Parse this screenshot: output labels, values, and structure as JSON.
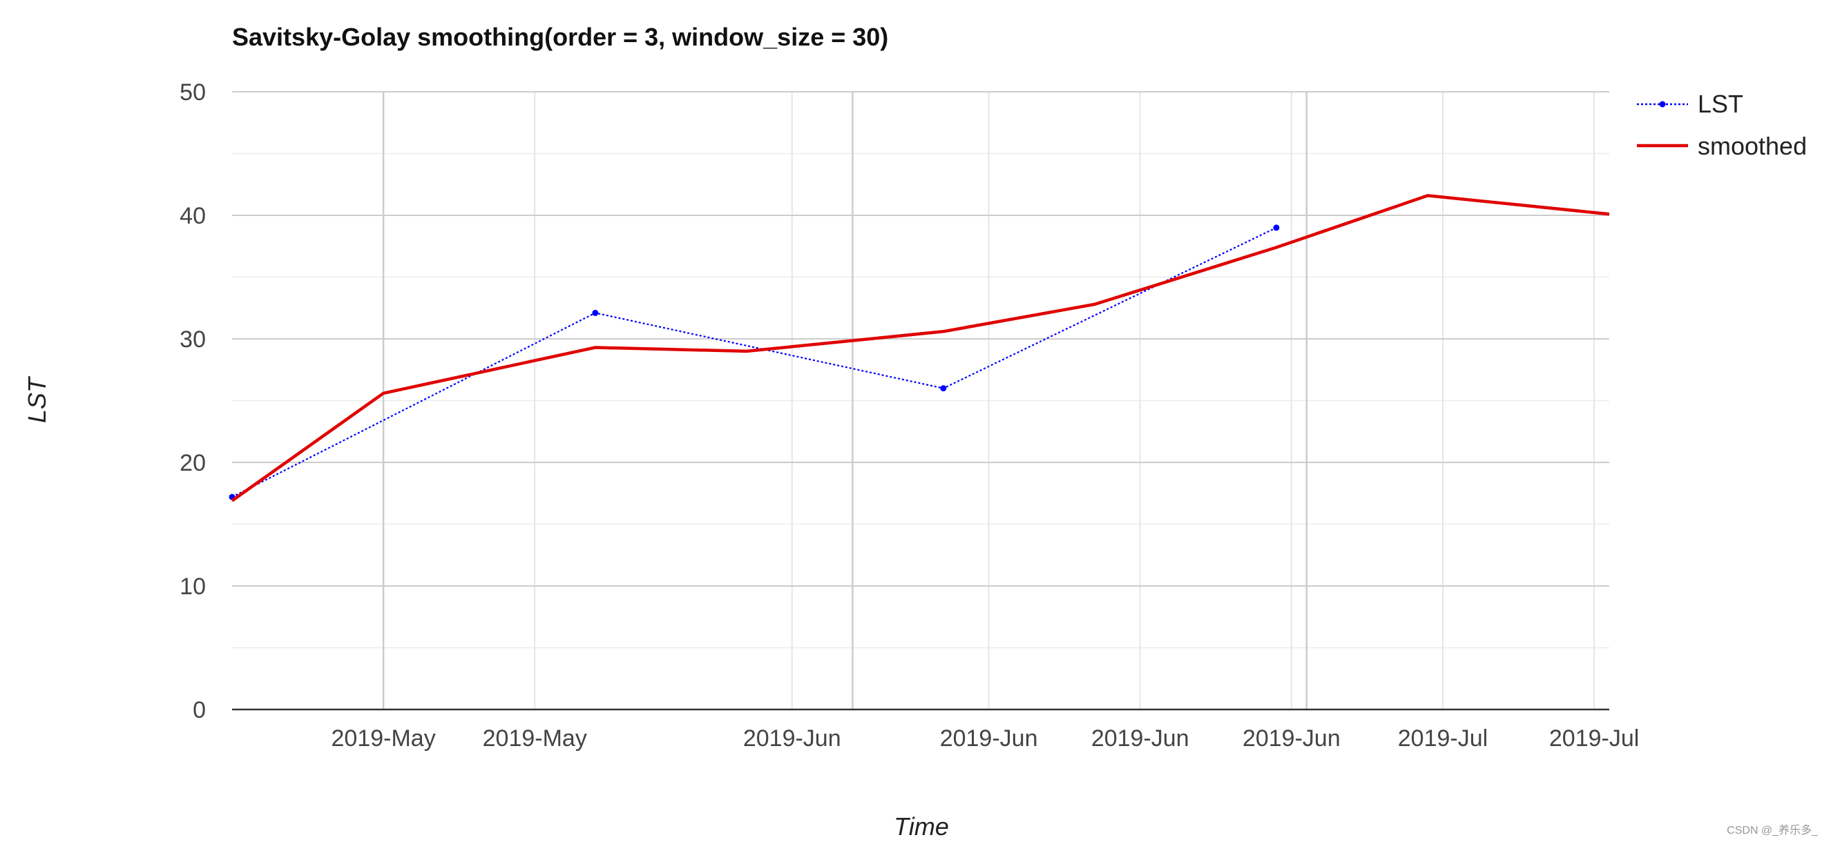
{
  "watermark": "CSDN @_养乐多_",
  "chart_data": {
    "type": "line",
    "title": "Savitsky-Golay smoothing(order = 3, window_size = 30)",
    "xlabel": "Time",
    "ylabel": "LST",
    "x_type": "date",
    "x_range": [
      "2019-04-21",
      "2019-07-21"
    ],
    "ylim": [
      0,
      50
    ],
    "y_ticks": [
      0,
      10,
      20,
      30,
      40,
      50
    ],
    "x_ticks": [
      {
        "date": "2019-05-01",
        "label": "2019-May"
      },
      {
        "date": "2019-05-11",
        "label": "2019-May"
      },
      {
        "date": "2019-05-28",
        "label": "2019-Jun"
      },
      {
        "date": "2019-06-10",
        "label": "2019-Jun"
      },
      {
        "date": "2019-06-20",
        "label": "2019-Jun"
      },
      {
        "date": "2019-06-30",
        "label": "2019-Jun"
      },
      {
        "date": "2019-07-10",
        "label": "2019-Jul"
      },
      {
        "date": "2019-07-20",
        "label": "2019-Jul"
      }
    ],
    "grid": true,
    "legend_position": "top-right",
    "series": [
      {
        "name": "LST",
        "style": "dotted",
        "marker": "point",
        "color": "#0000ff",
        "points": [
          {
            "x": "2019-04-21",
            "y": 17.2
          },
          {
            "x": "2019-05-15",
            "y": 32.1
          },
          {
            "x": "2019-06-07",
            "y": 26.0
          },
          {
            "x": "2019-06-29",
            "y": 39.0
          }
        ]
      },
      {
        "name": "smoothed",
        "style": "solid",
        "marker": "none",
        "color": "#e00000",
        "points": [
          {
            "x": "2019-04-21",
            "y": 16.9
          },
          {
            "x": "2019-05-01",
            "y": 25.6
          },
          {
            "x": "2019-05-15",
            "y": 29.3
          },
          {
            "x": "2019-05-25",
            "y": 29.0
          },
          {
            "x": "2019-06-07",
            "y": 30.6
          },
          {
            "x": "2019-06-17",
            "y": 32.8
          },
          {
            "x": "2019-06-29",
            "y": 37.4
          },
          {
            "x": "2019-07-09",
            "y": 41.6
          },
          {
            "x": "2019-07-21",
            "y": 40.1
          }
        ]
      }
    ]
  }
}
